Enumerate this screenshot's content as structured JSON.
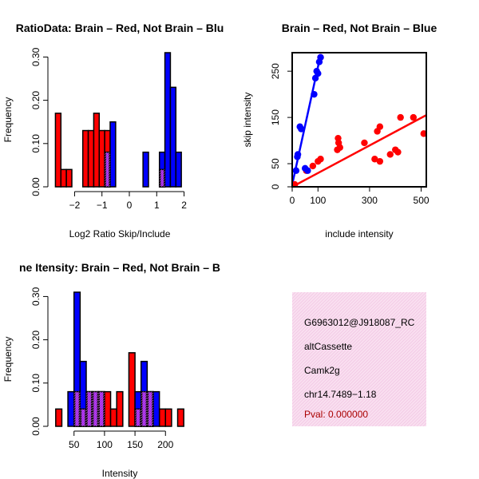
{
  "colors": {
    "brain": "#ff0000",
    "not_brain": "#0000ff",
    "overlap": "#a020f0",
    "info_bg": "#f9e0f0",
    "info_hatch": "#f2c6e4",
    "pval": "#aa0000"
  },
  "chart_data": [
    {
      "type": "histogram",
      "title": "RatioData: Brain – Red, Not Brain – Blu",
      "xlabel": "Log2 Ratio Skip/Include",
      "ylabel": "Frequency",
      "xlim": [
        -2.8,
        2.1
      ],
      "ylim": [
        0,
        0.31
      ],
      "xticks": [
        -2,
        -1,
        0,
        1,
        2
      ],
      "xtick_labels": [
        "−2",
        "−1",
        "0",
        "1",
        "2"
      ],
      "yticks": [
        0.0,
        0.1,
        0.2,
        0.3
      ],
      "ytick_labels": [
        "0.00",
        "0.10",
        "0.20",
        "0.30"
      ],
      "series": [
        {
          "name": "Brain",
          "bins": [
            {
              "x0": -2.7,
              "x1": -2.5,
              "value": 0.17
            },
            {
              "x0": -2.5,
              "x1": -2.3,
              "value": 0.04
            },
            {
              "x0": -2.3,
              "x1": -2.1,
              "value": 0.04
            },
            {
              "x0": -1.7,
              "x1": -1.5,
              "value": 0.13
            },
            {
              "x0": -1.5,
              "x1": -1.3,
              "value": 0.13
            },
            {
              "x0": -1.3,
              "x1": -1.1,
              "value": 0.17
            },
            {
              "x0": -1.1,
              "x1": -0.9,
              "value": 0.13
            },
            {
              "x0": -0.9,
              "x1": -0.7,
              "value": 0.13
            },
            {
              "x0": 1.1,
              "x1": 1.3,
              "value": 0.04
            }
          ]
        },
        {
          "name": "Not Brain",
          "bins": [
            {
              "x0": -0.9,
              "x1": -0.7,
              "value": 0.08
            },
            {
              "x0": -0.7,
              "x1": -0.5,
              "value": 0.15
            },
            {
              "x0": 0.5,
              "x1": 0.7,
              "value": 0.08
            },
            {
              "x0": 1.1,
              "x1": 1.3,
              "value": 0.08
            },
            {
              "x0": 1.3,
              "x1": 1.5,
              "value": 0.31
            },
            {
              "x0": 1.5,
              "x1": 1.7,
              "value": 0.23
            },
            {
              "x0": 1.7,
              "x1": 1.9,
              "value": 0.08
            }
          ]
        }
      ]
    },
    {
      "type": "scatter",
      "title": "Brain – Red, Not Brain – Blue",
      "xlabel": "include intensity",
      "ylabel": "skip intensity",
      "xlim": [
        0,
        520
      ],
      "ylim": [
        0,
        290
      ],
      "xticks": [
        0,
        100,
        300,
        500
      ],
      "yticks": [
        0,
        50,
        150,
        250
      ],
      "series": [
        {
          "name": "Brain",
          "points": [
            [
              10,
              5
            ],
            [
              55,
              35
            ],
            [
              80,
              45
            ],
            [
              100,
              55
            ],
            [
              110,
              60
            ],
            [
              175,
              80
            ],
            [
              180,
              95
            ],
            [
              185,
              85
            ],
            [
              178,
              105
            ],
            [
              280,
              95
            ],
            [
              320,
              60
            ],
            [
              330,
              120
            ],
            [
              340,
              130
            ],
            [
              340,
              55
            ],
            [
              380,
              70
            ],
            [
              400,
              80
            ],
            [
              410,
              75
            ],
            [
              420,
              150
            ],
            [
              470,
              150
            ],
            [
              510,
              115
            ],
            [
              110,
              280
            ]
          ],
          "fit": [
            [
              0,
              0
            ],
            [
              520,
              155
            ]
          ]
        },
        {
          "name": "Not Brain",
          "points": [
            [
              15,
              35
            ],
            [
              20,
              65
            ],
            [
              22,
              70
            ],
            [
              30,
              130
            ],
            [
              35,
              125
            ],
            [
              50,
              40
            ],
            [
              60,
              35
            ],
            [
              85,
              200
            ],
            [
              90,
              235
            ],
            [
              95,
              250
            ],
            [
              100,
              245
            ],
            [
              105,
              270
            ],
            [
              110,
              280
            ]
          ],
          "fit": [
            [
              0,
              5
            ],
            [
              110,
              285
            ]
          ]
        }
      ]
    },
    {
      "type": "histogram",
      "title": "ne Itensity: Brain – Red, Not Brain – B",
      "xlabel": "Intensity",
      "ylabel": "Frequency",
      "xlim": [
        15,
        235
      ],
      "ylim": [
        0,
        0.31
      ],
      "xticks": [
        50,
        100,
        150,
        200
      ],
      "yticks": [
        0.0,
        0.1,
        0.2,
        0.3
      ],
      "ytick_labels": [
        "0.00",
        "0.10",
        "0.20",
        "0.30"
      ],
      "series": [
        {
          "name": "Brain",
          "bins": [
            {
              "x0": 20,
              "x1": 30,
              "value": 0.04
            },
            {
              "x0": 50,
              "x1": 60,
              "value": 0.08
            },
            {
              "x0": 60,
              "x1": 70,
              "value": 0.04
            },
            {
              "x0": 70,
              "x1": 80,
              "value": 0.08
            },
            {
              "x0": 80,
              "x1": 90,
              "value": 0.08
            },
            {
              "x0": 90,
              "x1": 100,
              "value": 0.08
            },
            {
              "x0": 100,
              "x1": 110,
              "value": 0.08
            },
            {
              "x0": 110,
              "x1": 120,
              "value": 0.04
            },
            {
              "x0": 120,
              "x1": 130,
              "value": 0.08
            },
            {
              "x0": 140,
              "x1": 150,
              "value": 0.17
            },
            {
              "x0": 150,
              "x1": 160,
              "value": 0.04
            },
            {
              "x0": 160,
              "x1": 170,
              "value": 0.08
            },
            {
              "x0": 170,
              "x1": 180,
              "value": 0.08
            },
            {
              "x0": 190,
              "x1": 200,
              "value": 0.04
            },
            {
              "x0": 200,
              "x1": 210,
              "value": 0.04
            },
            {
              "x0": 220,
              "x1": 230,
              "value": 0.04
            }
          ]
        },
        {
          "name": "Not Brain",
          "bins": [
            {
              "x0": 40,
              "x1": 50,
              "value": 0.08
            },
            {
              "x0": 50,
              "x1": 60,
              "value": 0.31
            },
            {
              "x0": 60,
              "x1": 70,
              "value": 0.15
            },
            {
              "x0": 70,
              "x1": 80,
              "value": 0.08
            },
            {
              "x0": 80,
              "x1": 90,
              "value": 0.08
            },
            {
              "x0": 90,
              "x1": 100,
              "value": 0.08
            },
            {
              "x0": 150,
              "x1": 160,
              "value": 0.08
            },
            {
              "x0": 160,
              "x1": 170,
              "value": 0.15
            },
            {
              "x0": 170,
              "x1": 180,
              "value": 0.08
            },
            {
              "x0": 180,
              "x1": 190,
              "value": 0.08
            }
          ]
        }
      ]
    }
  ],
  "info_panel": {
    "lines": [
      "G6963012@J918087_RC",
      "altCassette",
      "Camk2g",
      "chr14.7489−1.18"
    ],
    "pval": "Pval: 0.000000"
  }
}
